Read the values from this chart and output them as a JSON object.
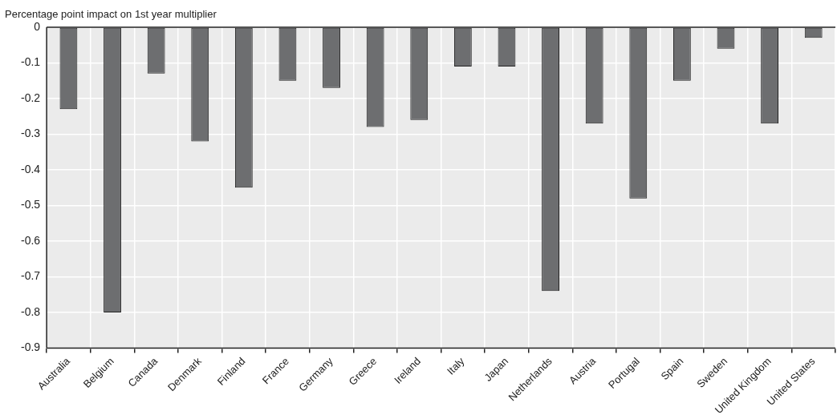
{
  "chart_data": {
    "type": "bar",
    "ylabel": "Percentage point impact on 1st year multiplier",
    "categories": [
      "Australia",
      "Belgium",
      "Canada",
      "Denmark",
      "Finland",
      "France",
      "Germany",
      "Greece",
      "Ireland",
      "Italy",
      "Japan",
      "Netherlands",
      "Austria",
      "Portugal",
      "Spain",
      "Sweden",
      "United Kingdom",
      "United States"
    ],
    "values": [
      -0.23,
      -0.8,
      -0.13,
      -0.32,
      -0.45,
      -0.15,
      -0.17,
      -0.28,
      -0.26,
      -0.11,
      -0.11,
      -0.74,
      -0.27,
      -0.48,
      -0.15,
      -0.06,
      -0.27,
      -0.03
    ],
    "color": "#6d6e70",
    "ylim": [
      -0.9,
      0
    ],
    "yticks": [
      0,
      -0.1,
      -0.2,
      -0.3,
      -0.4,
      -0.5,
      -0.6,
      -0.7,
      -0.8,
      -0.9
    ],
    "grid": true,
    "legend": false
  }
}
